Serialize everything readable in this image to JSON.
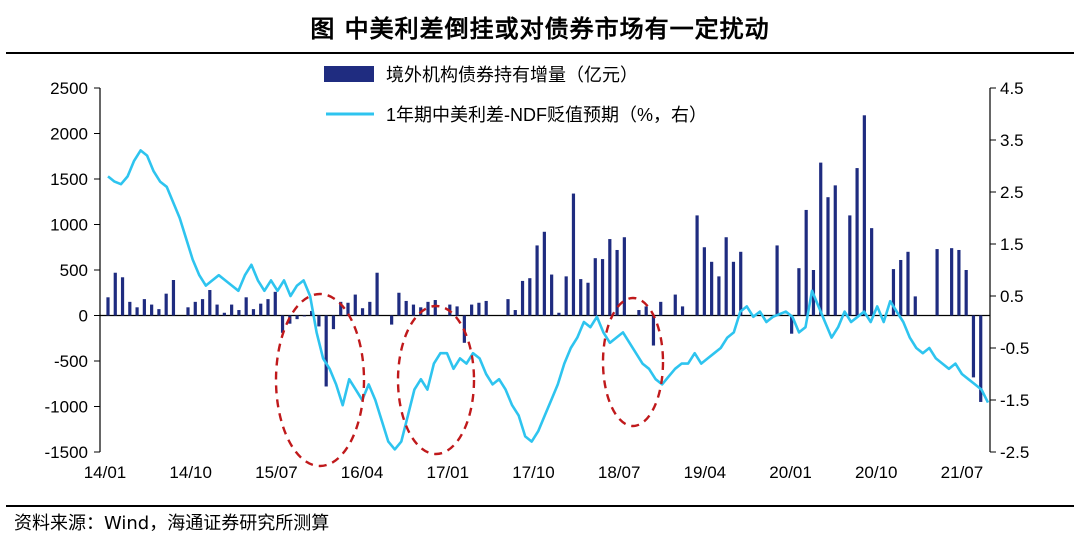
{
  "title": "图 中美利差倒挂或对债券市场有一定扰动",
  "source": "资料来源：Wind，海通证券研究所测算",
  "chart_data": {
    "type": "bar+line",
    "title": "图 中美利差倒挂或对债券市场有一定扰动",
    "x_ticks": [
      "14/01",
      "14/10",
      "15/07",
      "16/04",
      "17/01",
      "17/10",
      "18/07",
      "19/04",
      "20/01",
      "20/10",
      "21/07"
    ],
    "y_left": {
      "ticks": [
        "2500",
        "2000",
        "1500",
        "1000",
        "500",
        "0",
        "-500",
        "-1000",
        "-1500"
      ],
      "range": [
        -1500,
        2500
      ]
    },
    "y_right": {
      "ticks": [
        "4.5",
        "3.5",
        "2.5",
        "1.5",
        "0.5",
        "-0.5",
        "-1.5",
        "-2.5"
      ],
      "range": [
        -2.5,
        4.5
      ]
    },
    "legend": [
      {
        "name": "境外机构债券持有增量（亿元）",
        "color": "#1f2c80",
        "kind": "bar"
      },
      {
        "name": "1年期中美利差-NDF贬值预期（%，右）",
        "color": "#2ec4ef",
        "kind": "line"
      }
    ],
    "series": [
      {
        "name": "境外机构债券持有增量（亿元）",
        "axis": "left",
        "color": "#1f2c80",
        "start": "2014-01",
        "values": [
          200,
          470,
          420,
          150,
          90,
          180,
          120,
          70,
          240,
          390,
          0,
          90,
          150,
          180,
          280,
          120,
          30,
          120,
          60,
          200,
          70,
          130,
          180,
          260,
          -190,
          -90,
          -40,
          -10,
          50,
          -120,
          -780,
          -150,
          150,
          140,
          230,
          80,
          150,
          470,
          0,
          -100,
          250,
          160,
          120,
          90,
          150,
          170,
          0,
          120,
          100,
          -300,
          120,
          140,
          160,
          0,
          0,
          180,
          60,
          380,
          410,
          770,
          920,
          450,
          30,
          430,
          1340,
          400,
          360,
          630,
          620,
          840,
          720,
          860,
          0,
          60,
          100,
          -330,
          150,
          0,
          230,
          100,
          0,
          1100,
          750,
          590,
          430,
          860,
          590,
          700,
          0,
          0,
          0,
          0,
          770,
          0,
          -200,
          520,
          1160,
          500,
          1680,
          1300,
          1430,
          0,
          1100,
          1620,
          2200,
          960,
          0,
          0,
          510,
          610,
          700,
          210,
          0,
          0,
          730,
          0,
          740,
          720,
          500,
          -680,
          -950
        ]
      },
      {
        "name": "1年期中美利差-NDF贬值预期（%，右）",
        "axis": "right",
        "color": "#2ec4ef",
        "start": "2014-01",
        "values": [
          2.8,
          2.7,
          2.65,
          2.8,
          3.1,
          3.3,
          3.2,
          2.9,
          2.7,
          2.6,
          2.3,
          2.0,
          1.6,
          1.2,
          0.9,
          0.7,
          0.8,
          0.9,
          0.8,
          0.7,
          0.6,
          0.9,
          1.1,
          0.8,
          0.6,
          0.8,
          0.6,
          0.8,
          0.5,
          0.7,
          0.8,
          0.5,
          -0.2,
          -0.7,
          -0.9,
          -1.2,
          -1.6,
          -1.1,
          -1.3,
          -1.5,
          -1.2,
          -1.5,
          -1.9,
          -2.3,
          -2.45,
          -2.3,
          -1.8,
          -1.3,
          -1.1,
          -1.3,
          -0.8,
          -0.6,
          -0.6,
          -0.9,
          -0.7,
          -0.8,
          -0.6,
          -0.7,
          -1.0,
          -1.2,
          -1.1,
          -1.3,
          -1.6,
          -1.8,
          -2.2,
          -2.3,
          -2.1,
          -1.8,
          -1.5,
          -1.2,
          -0.8,
          -0.5,
          -0.3,
          0.0,
          -0.1,
          0.1,
          -0.2,
          -0.4,
          -0.3,
          -0.2,
          -0.4,
          -0.6,
          -0.8,
          -0.9,
          -1.1,
          -1.2,
          -1.05,
          -0.9,
          -0.8,
          -0.8,
          -0.6,
          -0.8,
          -0.7,
          -0.6,
          -0.5,
          -0.3,
          -0.2,
          0.2,
          0.3,
          0.1,
          0.2,
          0.0,
          0.1,
          0.15,
          0.2,
          0.1,
          -0.2,
          -0.1,
          0.6,
          0.3,
          0.0,
          -0.3,
          -0.1,
          0.2,
          0.0,
          0.1,
          0.2,
          0.0,
          0.3,
          0.0,
          0.4,
          0.2,
          0.0,
          -0.3,
          -0.5,
          -0.6,
          -0.5,
          -0.7,
          -0.8,
          -0.9,
          -0.8,
          -1.0,
          -1.1,
          -1.2,
          -1.3,
          -1.55
        ]
      }
    ],
    "annotations": [
      {
        "type": "dashed-ellipse",
        "color": "#c0191b",
        "around": "15/10–16/04"
      },
      {
        "type": "dashed-ellipse",
        "color": "#c0191b",
        "around": "16/10–17/04"
      },
      {
        "type": "dashed-ellipse",
        "color": "#c0191b",
        "around": "18/10–19/01"
      }
    ]
  }
}
